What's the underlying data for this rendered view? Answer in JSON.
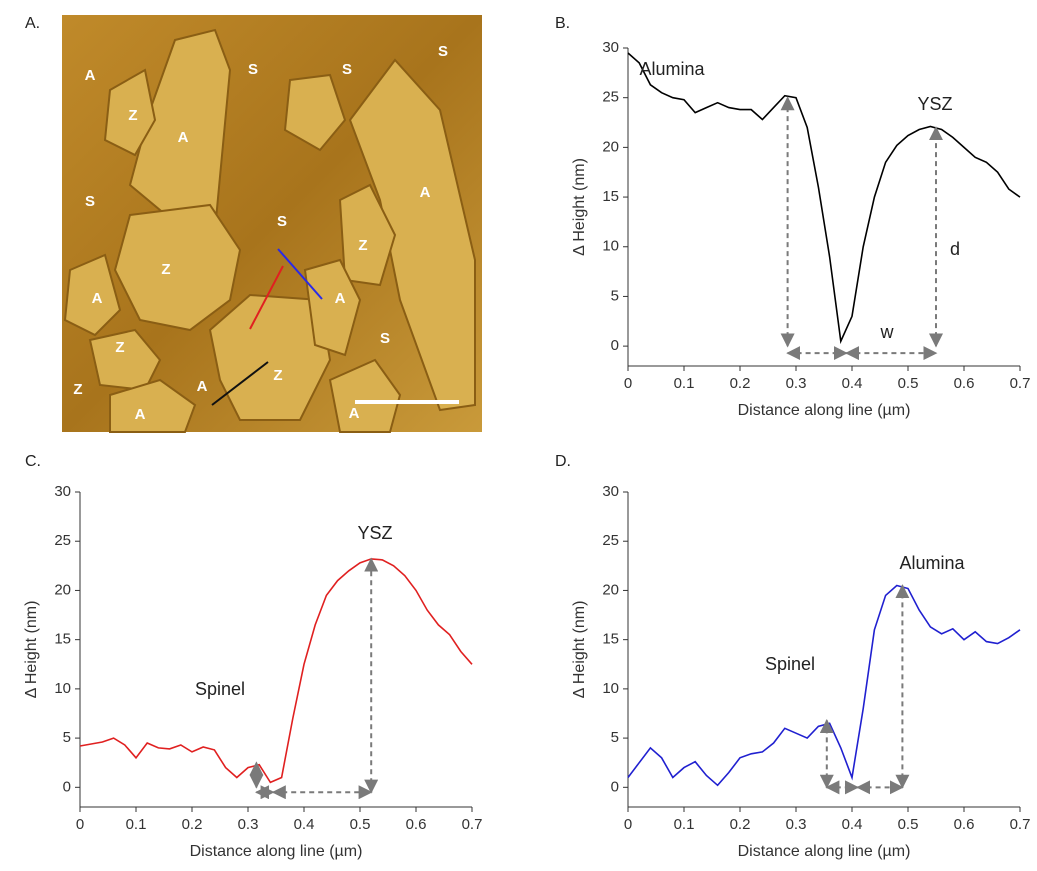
{
  "panel_labels": [
    "A.",
    "B.",
    "C.",
    "D."
  ],
  "afm_image": {
    "labels": [
      "A",
      "Z",
      "A",
      "S",
      "S",
      "S",
      "S",
      "A",
      "S",
      "Z",
      "Z",
      "A",
      "A",
      "Z",
      "S",
      "A",
      "Z",
      "Z",
      "A",
      "A"
    ]
  },
  "chart_data": [
    {
      "type": "line",
      "x": [
        0,
        0.02,
        0.04,
        0.06,
        0.08,
        0.1,
        0.12,
        0.14,
        0.16,
        0.18,
        0.2,
        0.22,
        0.24,
        0.26,
        0.28,
        0.3,
        0.32,
        0.34,
        0.36,
        0.38,
        0.4,
        0.42,
        0.44,
        0.46,
        0.48,
        0.5,
        0.52,
        0.54,
        0.56,
        0.58,
        0.6,
        0.62,
        0.64,
        0.66,
        0.68,
        0.7
      ],
      "series": [
        {
          "color": "#000000",
          "values": [
            29.5,
            28.5,
            26.3,
            25.5,
            25,
            24.8,
            23.5,
            24,
            24.5,
            24,
            23.8,
            23.8,
            22.8,
            24,
            25.2,
            25,
            22,
            16,
            9,
            0.5,
            3,
            10,
            15,
            18.5,
            20.2,
            21.2,
            21.8,
            22.1,
            21.8,
            21,
            20,
            19,
            18.5,
            17.5,
            15.8,
            15
          ]
        }
      ],
      "xlim": [
        0,
        0.7
      ],
      "ylim": [
        -2,
        30
      ],
      "xticks": [
        0,
        0.1,
        0.2,
        0.3,
        0.4,
        0.5,
        0.6,
        0.7
      ],
      "yticks": [
        0,
        5,
        10,
        15,
        20,
        25,
        30
      ],
      "xlabel": "Distance along line (µm)",
      "ylabel": "Δ Height (nm)",
      "annotations": [
        "Alumina",
        "YSZ",
        "d",
        "w"
      ],
      "arrows": [
        {
          "x": [
            0.285,
            0.285
          ],
          "y": [
            0,
            25
          ]
        },
        {
          "x": [
            0.55,
            0.55
          ],
          "y": [
            0,
            22
          ]
        },
        {
          "x": [
            0.285,
            0.39
          ],
          "y": [
            -0.7,
            -0.7
          ]
        },
        {
          "x": [
            0.39,
            0.55
          ],
          "y": [
            -0.7,
            -0.7
          ]
        }
      ]
    },
    {
      "type": "line",
      "x": [
        0,
        0.02,
        0.04,
        0.06,
        0.08,
        0.1,
        0.12,
        0.14,
        0.16,
        0.18,
        0.2,
        0.22,
        0.24,
        0.26,
        0.28,
        0.3,
        0.32,
        0.34,
        0.36,
        0.38,
        0.4,
        0.42,
        0.44,
        0.46,
        0.48,
        0.5,
        0.52,
        0.54,
        0.56,
        0.58,
        0.6,
        0.62,
        0.64,
        0.66,
        0.68,
        0.7
      ],
      "series": [
        {
          "color": "#e02020",
          "values": [
            4.2,
            4.4,
            4.6,
            5,
            4.3,
            3,
            4.5,
            4,
            3.9,
            4.3,
            3.6,
            4.1,
            3.8,
            2,
            1,
            2,
            2.3,
            0.5,
            1,
            7,
            12.5,
            16.5,
            19.5,
            21,
            22,
            22.8,
            23.2,
            23.1,
            22.5,
            21.5,
            20,
            18,
            16.5,
            15.5,
            13.8,
            12.5
          ]
        }
      ],
      "xlim": [
        0,
        0.7
      ],
      "ylim": [
        -2,
        30
      ],
      "xticks": [
        0,
        0.1,
        0.2,
        0.3,
        0.4,
        0.5,
        0.6,
        0.7
      ],
      "yticks": [
        0,
        5,
        10,
        15,
        20,
        25,
        30
      ],
      "xlabel": "Distance along line (µm)",
      "ylabel": "Δ Height (nm)",
      "annotations": [
        "Spinel",
        "YSZ"
      ],
      "arrows": [
        {
          "x": [
            0.315,
            0.315
          ],
          "y": [
            0,
            2.5
          ]
        },
        {
          "x": [
            0.52,
            0.52
          ],
          "y": [
            -0.5,
            23.2
          ]
        },
        {
          "x": [
            0.315,
            0.345
          ],
          "y": [
            -0.5,
            -0.5
          ]
        },
        {
          "x": [
            0.345,
            0.52
          ],
          "y": [
            -0.5,
            -0.5
          ]
        }
      ]
    },
    {
      "type": "line",
      "x": [
        0,
        0.02,
        0.04,
        0.06,
        0.08,
        0.1,
        0.12,
        0.14,
        0.16,
        0.18,
        0.2,
        0.22,
        0.24,
        0.26,
        0.28,
        0.3,
        0.32,
        0.34,
        0.36,
        0.38,
        0.4,
        0.42,
        0.44,
        0.46,
        0.48,
        0.5,
        0.52,
        0.54,
        0.56,
        0.58,
        0.6,
        0.62,
        0.64,
        0.66,
        0.68,
        0.7
      ],
      "series": [
        {
          "color": "#2020d0",
          "values": [
            1,
            2.5,
            4,
            3,
            1,
            2,
            2.6,
            1.2,
            0.2,
            1.5,
            3,
            3.4,
            3.6,
            4.5,
            6,
            5.5,
            5,
            6.2,
            6.5,
            4,
            1,
            8,
            16,
            19.5,
            20.5,
            20.2,
            18,
            16.3,
            15.6,
            16.1,
            15,
            15.8,
            14.8,
            14.6,
            15.2,
            16
          ]
        }
      ],
      "xlim": [
        0,
        0.7
      ],
      "ylim": [
        -2,
        30
      ],
      "xticks": [
        0,
        0.1,
        0.2,
        0.3,
        0.4,
        0.5,
        0.6,
        0.7
      ],
      "yticks": [
        0,
        5,
        10,
        15,
        20,
        25,
        30
      ],
      "xlabel": "Distance along line (µm)",
      "ylabel": "Δ Height (nm)",
      "annotations": [
        "Spinel",
        "Alumina"
      ],
      "arrows": [
        {
          "x": [
            0.355,
            0.355
          ],
          "y": [
            0,
            6.8
          ]
        },
        {
          "x": [
            0.49,
            0.49
          ],
          "y": [
            0,
            20.5
          ]
        },
        {
          "x": [
            0.355,
            0.41
          ],
          "y": [
            0,
            0
          ]
        },
        {
          "x": [
            0.41,
            0.49
          ],
          "y": [
            0,
            0
          ]
        }
      ]
    }
  ]
}
